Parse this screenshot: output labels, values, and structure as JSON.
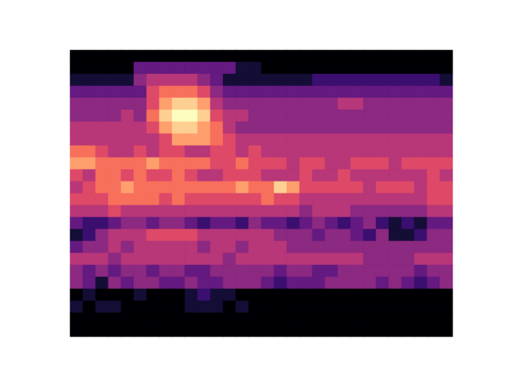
{
  "chart_data": {
    "type": "heatmap",
    "tick_labels": false,
    "color": "magma",
    "zlim": [
      0,
      10
    ],
    "cells": [
      [
        0,
        0,
        0,
        0,
        0,
        0,
        0,
        0,
        0,
        0,
        0,
        0,
        0,
        0,
        0,
        0,
        0,
        0,
        0,
        0,
        0,
        0,
        0,
        0,
        0,
        0,
        0,
        0,
        0,
        0
      ],
      [
        0,
        0,
        0,
        0,
        0,
        3,
        3,
        3,
        3,
        3,
        3,
        3,
        3,
        1,
        1,
        0,
        0,
        0,
        0,
        0,
        0,
        0,
        0,
        0,
        0,
        0,
        0,
        0,
        0,
        0
      ],
      [
        1,
        1,
        1,
        1,
        1,
        4,
        5,
        5,
        5,
        5,
        4,
        3,
        1,
        1,
        1,
        1,
        1,
        1,
        1,
        2,
        2,
        2,
        2,
        2,
        2,
        2,
        2,
        2,
        2,
        1
      ],
      [
        3,
        3,
        3,
        3,
        3,
        3,
        6,
        7,
        7,
        7,
        6,
        4,
        3,
        3,
        3,
        3,
        3,
        3,
        3,
        3,
        3,
        3,
        3,
        3,
        3,
        3,
        3,
        3,
        3,
        3
      ],
      [
        4,
        4,
        4,
        4,
        4,
        4,
        6,
        8,
        9,
        9,
        8,
        5,
        4,
        4,
        4,
        4,
        4,
        4,
        4,
        4,
        4,
        5,
        5,
        4,
        4,
        4,
        4,
        4,
        4,
        4
      ],
      [
        4,
        4,
        4,
        4,
        5,
        4,
        7,
        9,
        10,
        10,
        9,
        6,
        5,
        5,
        4,
        4,
        4,
        4,
        4,
        4,
        4,
        4,
        4,
        4,
        4,
        4,
        4,
        4,
        4,
        4
      ],
      [
        5,
        5,
        5,
        5,
        5,
        5,
        6,
        8,
        9,
        9,
        8,
        7,
        5,
        4,
        4,
        4,
        4,
        4,
        4,
        4,
        4,
        4,
        4,
        4,
        4,
        4,
        4,
        4,
        4,
        4
      ],
      [
        5,
        5,
        5,
        5,
        5,
        5,
        5,
        6,
        8,
        8,
        8,
        7,
        6,
        5,
        5,
        5,
        5,
        5,
        5,
        5,
        5,
        5,
        5,
        5,
        5,
        5,
        5,
        5,
        5,
        5
      ],
      [
        7,
        7,
        6,
        5,
        5,
        6,
        5,
        6,
        6,
        5,
        5,
        6,
        6,
        5,
        6,
        5,
        5,
        5,
        5,
        5,
        5,
        5,
        5,
        5,
        5,
        5,
        5,
        5,
        5,
        5
      ],
      [
        8,
        8,
        7,
        7,
        7,
        7,
        8,
        7,
        7,
        7,
        7,
        6,
        6,
        7,
        6,
        6,
        6,
        5,
        6,
        6,
        5,
        5,
        6,
        6,
        6,
        5,
        6,
        6,
        6,
        6
      ],
      [
        6,
        5,
        7,
        7,
        6,
        7,
        6,
        6,
        7,
        6,
        5,
        5,
        6,
        6,
        6,
        5,
        5,
        5,
        6,
        5,
        5,
        6,
        5,
        5,
        5,
        5,
        5,
        5,
        6,
        5
      ],
      [
        5,
        6,
        7,
        7,
        8,
        7,
        7,
        7,
        7,
        7,
        7,
        7,
        7,
        8,
        7,
        7,
        9,
        8,
        6,
        6,
        6,
        6,
        6,
        5,
        6,
        6,
        6,
        5,
        6,
        6
      ],
      [
        6,
        6,
        6,
        7,
        7,
        7,
        7,
        6,
        7,
        6,
        6,
        6,
        6,
        6,
        6,
        7,
        6,
        6,
        5,
        5,
        5,
        5,
        5,
        5,
        5,
        5,
        5,
        5,
        6,
        6
      ],
      [
        5,
        5,
        5,
        6,
        5,
        5,
        5,
        5,
        5,
        5,
        5,
        5,
        5,
        5,
        5,
        5,
        5,
        5,
        4,
        5,
        5,
        5,
        4,
        4,
        4,
        4,
        4,
        4,
        5,
        5
      ],
      [
        3,
        2,
        2,
        3,
        4,
        4,
        3,
        4,
        4,
        3,
        2,
        3,
        3,
        2,
        4,
        3,
        3,
        2,
        3,
        4,
        3,
        2,
        3,
        4,
        2,
        1,
        2,
        1,
        3,
        3
      ],
      [
        1,
        2,
        4,
        5,
        5,
        5,
        6,
        6,
        6,
        6,
        5,
        5,
        5,
        5,
        5,
        5,
        4,
        4,
        4,
        3,
        4,
        4,
        3,
        2,
        4,
        1,
        1,
        2,
        4,
        4
      ],
      [
        3,
        4,
        4,
        5,
        4,
        5,
        5,
        5,
        5,
        5,
        4,
        5,
        5,
        4,
        5,
        5,
        5,
        4,
        4,
        4,
        4,
        4,
        4,
        4,
        4,
        4,
        4,
        4,
        4,
        4
      ],
      [
        5,
        5,
        5,
        4,
        5,
        5,
        5,
        5,
        5,
        5,
        5,
        5,
        4,
        5,
        5,
        5,
        5,
        5,
        5,
        5,
        5,
        5,
        5,
        4,
        4,
        4,
        4,
        5,
        5,
        5
      ],
      [
        4,
        3,
        4,
        3,
        4,
        4,
        3,
        4,
        4,
        3,
        3,
        4,
        4,
        4,
        4,
        4,
        3,
        4,
        4,
        3,
        3,
        4,
        4,
        4,
        4,
        4,
        4,
        3,
        4,
        4
      ],
      [
        4,
        3,
        1,
        4,
        3,
        4,
        4,
        3,
        3,
        4,
        3,
        3,
        4,
        4,
        4,
        3,
        2,
        3,
        3,
        3,
        4,
        4,
        4,
        4,
        3,
        4,
        3,
        2,
        3,
        4
      ],
      [
        0,
        1,
        0,
        0,
        0,
        1,
        0,
        0,
        0,
        1,
        2,
        1,
        1,
        0,
        0,
        0,
        0,
        0,
        0,
        0,
        0,
        0,
        0,
        0,
        0,
        0,
        0,
        0,
        0,
        0
      ],
      [
        1,
        0,
        1,
        1,
        0,
        0,
        0,
        0,
        0,
        1,
        1,
        1,
        0,
        1,
        0,
        0,
        0,
        0,
        0,
        0,
        0,
        0,
        0,
        0,
        0,
        0,
        0,
        0,
        0,
        0
      ],
      [
        0,
        0,
        0,
        0,
        0,
        0,
        0,
        0,
        0,
        0,
        0,
        0,
        0,
        0,
        0,
        0,
        0,
        0,
        0,
        0,
        0,
        0,
        0,
        0,
        0,
        0,
        0,
        0,
        0,
        0
      ],
      [
        0,
        0,
        0,
        0,
        0,
        0,
        0,
        0,
        0,
        0,
        0,
        0,
        0,
        0,
        0,
        0,
        0,
        0,
        0,
        0,
        0,
        0,
        0,
        0,
        0,
        0,
        0,
        0,
        0,
        0
      ]
    ]
  }
}
